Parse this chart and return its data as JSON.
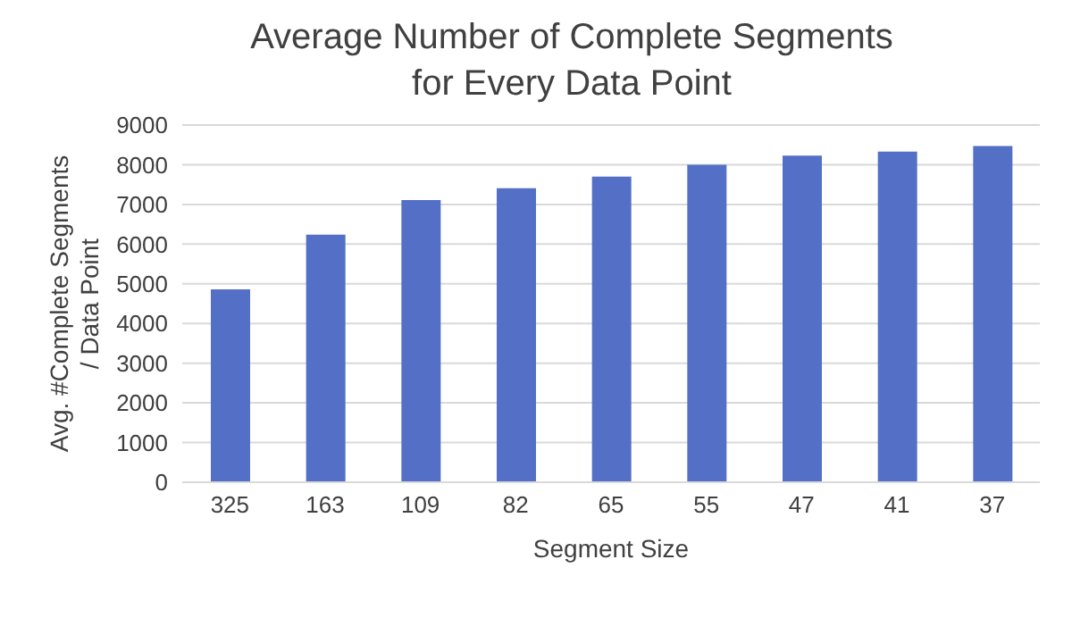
{
  "chart_data": {
    "type": "bar",
    "title": "Average Number of Complete Segments\nfor Every Data Point",
    "xlabel": "Segment Size",
    "ylabel": "Avg. #Complete Segments\n/ Data Point",
    "categories": [
      "325",
      "163",
      "109",
      "82",
      "65",
      "55",
      "47",
      "41",
      "37"
    ],
    "values": [
      4860,
      6240,
      7110,
      7410,
      7700,
      8000,
      8230,
      8330,
      8470
    ],
    "color": "#5470c6",
    "ylim": [
      0,
      9000
    ],
    "yticks": [
      0,
      1000,
      2000,
      3000,
      4000,
      5000,
      6000,
      7000,
      8000,
      9000
    ],
    "grid": "y"
  }
}
